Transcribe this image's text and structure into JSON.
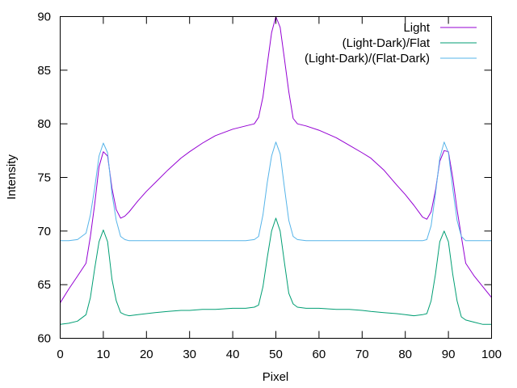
{
  "chart_data": {
    "type": "line",
    "title": "",
    "xlabel": "Pixel",
    "ylabel": "Intensity",
    "xlim": [
      0,
      100
    ],
    "ylim": [
      60,
      90
    ],
    "xticks": [
      0,
      10,
      20,
      30,
      40,
      50,
      60,
      70,
      80,
      90,
      100
    ],
    "yticks": [
      60,
      65,
      70,
      75,
      80,
      85,
      90
    ],
    "grid": false,
    "legend": "top-right",
    "x": [
      0,
      2,
      4,
      6,
      7,
      8,
      9,
      10,
      11,
      12,
      13,
      14,
      15,
      16,
      18,
      20,
      22,
      25,
      28,
      30,
      33,
      36,
      40,
      43,
      45,
      46,
      47,
      48,
      49,
      50,
      51,
      52,
      53,
      54,
      55,
      57,
      60,
      64,
      67,
      70,
      72,
      75,
      78,
      80,
      82,
      84,
      85,
      86,
      87,
      88,
      89,
      90,
      91,
      92,
      93,
      94,
      96,
      98,
      100
    ],
    "series": [
      {
        "name": "Light",
        "color": "#9400d3",
        "values": [
          63.3,
          64.6,
          65.8,
          67.0,
          69.5,
          72.5,
          76.0,
          77.4,
          77.0,
          74.0,
          72.0,
          71.2,
          71.4,
          71.8,
          72.8,
          73.7,
          74.5,
          75.7,
          76.8,
          77.4,
          78.2,
          78.9,
          79.5,
          79.8,
          80.0,
          80.6,
          82.5,
          85.5,
          88.5,
          90.0,
          89.0,
          86.0,
          83.0,
          80.5,
          80.0,
          79.8,
          79.4,
          78.7,
          78.0,
          77.3,
          76.8,
          75.7,
          74.3,
          73.4,
          72.4,
          71.3,
          71.1,
          71.8,
          73.8,
          76.5,
          77.5,
          77.4,
          75.0,
          72.0,
          69.5,
          67.0,
          65.8,
          64.8,
          63.8
        ]
      },
      {
        "name": "(Light-Dark)/Flat",
        "color": "#009e73",
        "values": [
          61.3,
          61.4,
          61.6,
          62.2,
          63.8,
          66.5,
          69.0,
          70.1,
          69.0,
          65.5,
          63.5,
          62.4,
          62.2,
          62.1,
          62.2,
          62.3,
          62.4,
          62.5,
          62.6,
          62.6,
          62.7,
          62.7,
          62.8,
          62.8,
          62.9,
          63.1,
          64.8,
          67.5,
          70.0,
          71.2,
          70.0,
          67.0,
          64.2,
          63.2,
          62.9,
          62.8,
          62.8,
          62.7,
          62.7,
          62.6,
          62.5,
          62.4,
          62.3,
          62.2,
          62.1,
          62.2,
          62.3,
          63.5,
          66.0,
          69.0,
          70.0,
          69.0,
          66.0,
          63.5,
          62.0,
          61.7,
          61.5,
          61.3,
          61.3
        ]
      },
      {
        "name": "(Light-Dark)/(Flat-Dark)",
        "color": "#56b4e9",
        "values": [
          69.1,
          69.1,
          69.2,
          69.8,
          71.5,
          74.0,
          77.0,
          78.2,
          77.3,
          73.5,
          71.0,
          69.5,
          69.2,
          69.1,
          69.1,
          69.1,
          69.1,
          69.1,
          69.1,
          69.1,
          69.1,
          69.1,
          69.1,
          69.1,
          69.2,
          69.5,
          71.5,
          74.5,
          77.0,
          78.3,
          77.2,
          74.0,
          71.0,
          69.5,
          69.2,
          69.1,
          69.1,
          69.1,
          69.1,
          69.1,
          69.1,
          69.1,
          69.1,
          69.1,
          69.1,
          69.1,
          69.2,
          70.5,
          73.5,
          76.8,
          78.3,
          77.3,
          74.0,
          71.0,
          69.5,
          69.1,
          69.1,
          69.1,
          69.1
        ]
      }
    ]
  }
}
